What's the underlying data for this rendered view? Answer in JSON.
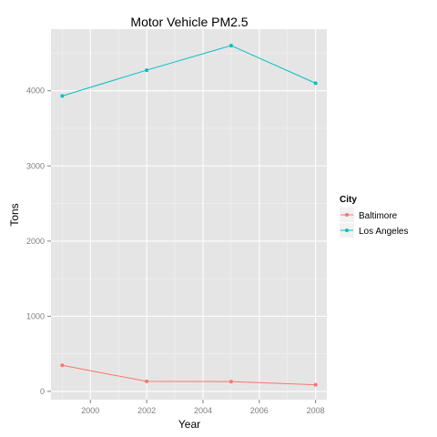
{
  "chart_data": {
    "type": "line",
    "title": "Motor Vehicle PM2.5",
    "xlabel": "Year",
    "ylabel": "Tons",
    "x": [
      1999,
      2002,
      2005,
      2008
    ],
    "xlim": [
      1998.6,
      2008.4
    ],
    "ylim": [
      -110,
      4820
    ],
    "xticks": [
      2000,
      2002,
      2004,
      2006,
      2008
    ],
    "yticks": [
      0,
      1000,
      2000,
      3000,
      4000
    ],
    "grid": true,
    "legend": {
      "title": "City",
      "position": "right"
    },
    "series": [
      {
        "name": "Baltimore",
        "color": "#F8766D",
        "values": [
          347,
          134,
          131,
          88
        ]
      },
      {
        "name": "Los Angeles",
        "color": "#00BFC4",
        "values": [
          3931,
          4274,
          4601,
          4101
        ]
      }
    ]
  }
}
